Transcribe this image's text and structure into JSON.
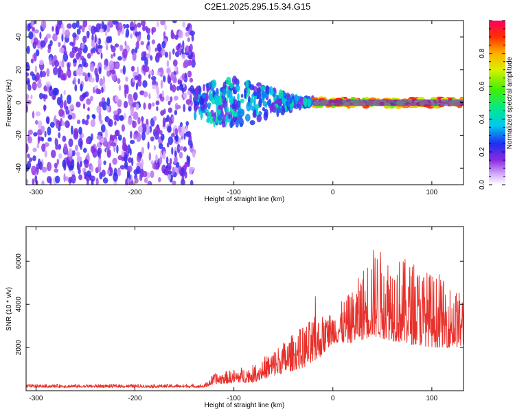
{
  "title": "C2E1.2025.295.15.34.G15",
  "colors": {
    "snr_line": "#e8302a",
    "axis": "#000000"
  },
  "chart_data": [
    {
      "type": "heatmap",
      "name": "spectrogram",
      "xlabel": "Height of straight line (km)",
      "ylabel": "Frequency (Hz)",
      "xlim": [
        -310,
        132
      ],
      "ylim": [
        -50,
        50
      ],
      "x_ticks": [
        -300,
        -200,
        -100,
        0,
        100
      ],
      "y_ticks": [
        -40,
        -20,
        0,
        20,
        40
      ],
      "colorbar": {
        "label": "Normalized spectral amplitude",
        "range": [
          0,
          1
        ],
        "ticks": [
          "0.0",
          "0.2",
          "0.4",
          "0.6",
          "0.8"
        ],
        "tick_values": [
          0,
          0.2,
          0.4,
          0.6,
          0.8
        ]
      },
      "regions": [
        {
          "name": "noise",
          "x": [
            -310,
            -140
          ],
          "freq": [
            -50,
            50
          ],
          "amplitude": [
            0.05,
            0.25
          ]
        },
        {
          "name": "transition",
          "x": [
            -140,
            -20
          ],
          "freq": [
            -15,
            15
          ],
          "amplitude": [
            0.15,
            0.45
          ]
        },
        {
          "name": "signal",
          "x": [
            -20,
            132
          ],
          "freq": [
            -3,
            3
          ],
          "amplitude": [
            0.6,
            0.98
          ]
        }
      ]
    },
    {
      "type": "line",
      "name": "snr",
      "xlabel": "Height of straight line (km)",
      "ylabel": "SNR (10 * v/v)",
      "xlim": [
        -310,
        132
      ],
      "ylim": [
        0,
        7600
      ],
      "x_ticks": [
        -300,
        -200,
        -100,
        0,
        100
      ],
      "y_ticks": [
        2000,
        4000,
        6000
      ],
      "envelope": [
        {
          "x": -310,
          "base": 150,
          "spread": 150
        },
        {
          "x": -130,
          "base": 150,
          "spread": 150
        },
        {
          "x": -120,
          "base": 300,
          "spread": 500
        },
        {
          "x": -80,
          "base": 400,
          "spread": 800
        },
        {
          "x": -50,
          "base": 800,
          "spread": 1500
        },
        {
          "x": -20,
          "base": 1200,
          "spread": 2200
        },
        {
          "x": 0,
          "base": 2200,
          "spread": 1500
        },
        {
          "x": 20,
          "base": 2200,
          "spread": 2500
        },
        {
          "x": 40,
          "base": 2500,
          "spread": 4200
        },
        {
          "x": 70,
          "base": 2200,
          "spread": 4000
        },
        {
          "x": 100,
          "base": 2000,
          "spread": 3500
        },
        {
          "x": 132,
          "base": 2000,
          "spread": 2500
        }
      ]
    }
  ]
}
